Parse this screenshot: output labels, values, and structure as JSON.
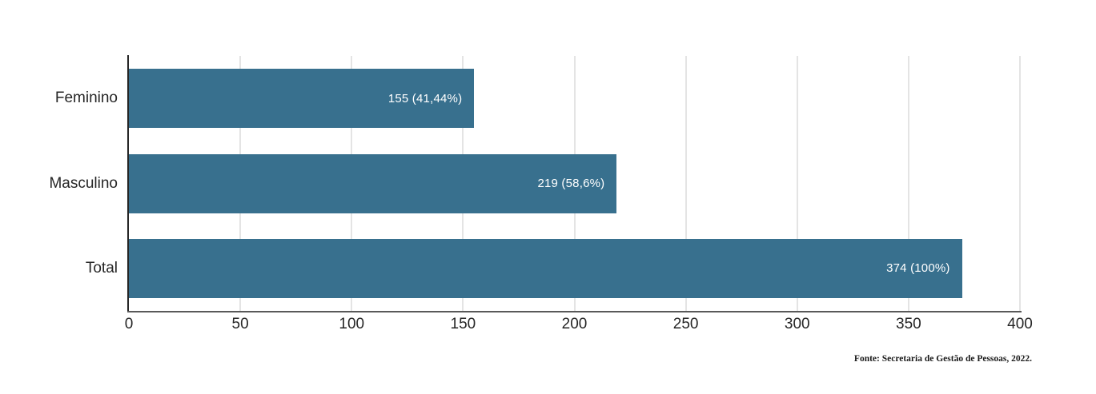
{
  "chart_data": {
    "type": "bar",
    "orientation": "horizontal",
    "title": "",
    "xlabel": "",
    "ylabel": "",
    "categories": [
      "Feminino",
      "Masculino",
      "Total"
    ],
    "values": [
      155,
      219,
      374
    ],
    "bar_labels": [
      "155 (41,44%)",
      "219 (58,6%)",
      "374 (100%)"
    ],
    "xlim": [
      0,
      400
    ],
    "x_ticks": [
      "0",
      "50",
      "100",
      "150",
      "200",
      "250",
      "300",
      "350",
      "400"
    ],
    "grid": "vertical-gridlines",
    "legend_position": "none",
    "colors": {
      "bar": "#38708E",
      "bar_label_text": "#FFFFFF",
      "gridline": "#C9C9C9",
      "axis_x": "#595959",
      "axis_y": "#262626",
      "tick_text": "#262626",
      "category_text": "#262626",
      "background": "#FFFFFF"
    }
  },
  "footer": {
    "source": "Fonte: Secretaria de Gestão de Pessoas, 2022."
  }
}
